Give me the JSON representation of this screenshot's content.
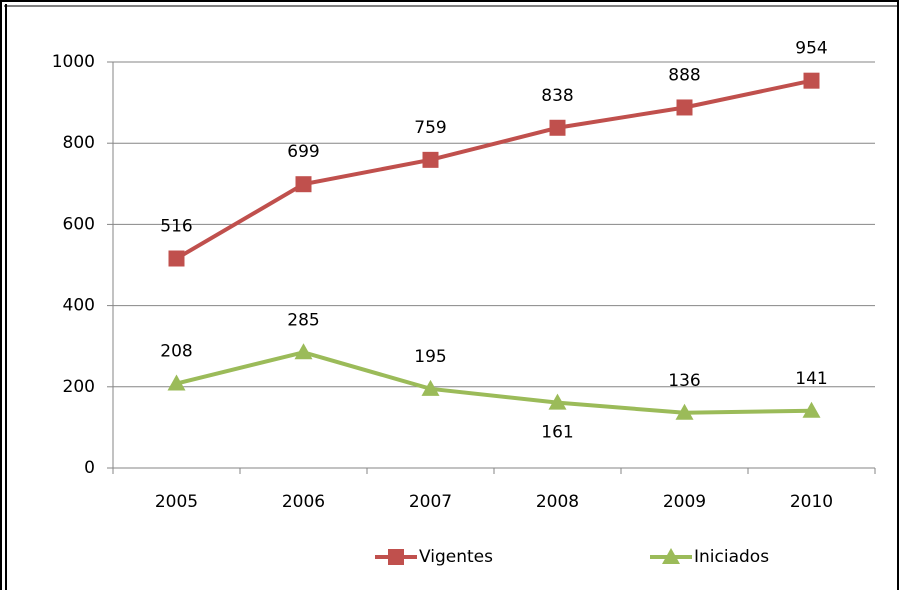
{
  "chart_data": {
    "type": "line",
    "categories": [
      "2005",
      "2006",
      "2007",
      "2008",
      "2009",
      "2010"
    ],
    "series": [
      {
        "name": "Vigentes",
        "color": "#c0504d",
        "marker": "square",
        "values": [
          516,
          699,
          759,
          838,
          888,
          954
        ]
      },
      {
        "name": "Iniciados",
        "color": "#9bbb59",
        "marker": "triangle",
        "values": [
          208,
          285,
          195,
          161,
          136,
          141
        ]
      }
    ],
    "ylim": [
      0,
      1000
    ],
    "yticks": [
      0,
      200,
      400,
      600,
      800,
      1000
    ],
    "grid": true,
    "legend": "bottom"
  }
}
